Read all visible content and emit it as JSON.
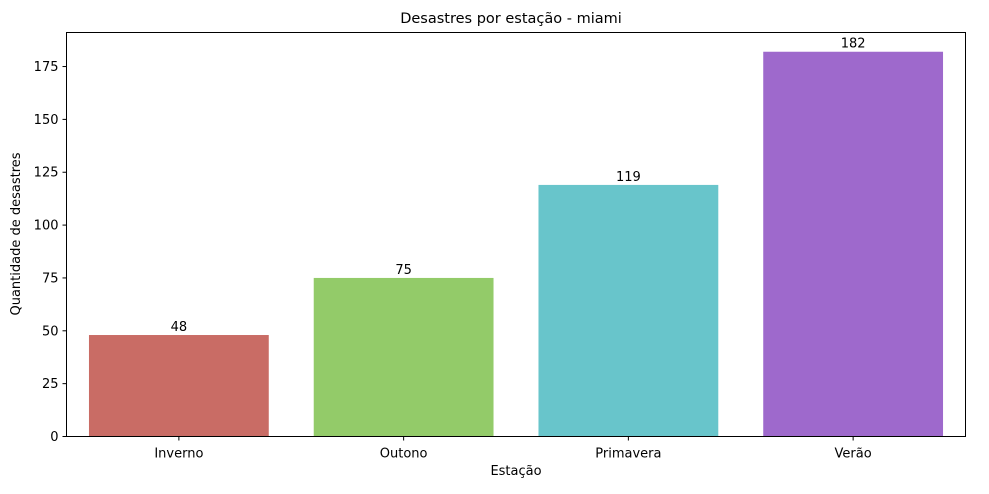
{
  "chart_data": {
    "type": "bar",
    "title": "Desastres por estação - miami",
    "xlabel": "Estação",
    "ylabel": "Quantidade de desastres",
    "categories": [
      "Inverno",
      "Outono",
      "Primavera",
      "Verão"
    ],
    "values": [
      48,
      75,
      119,
      182
    ],
    "data_labels": [
      "48",
      "75",
      "119",
      "182"
    ],
    "colors": [
      "#c96c65",
      "#93cb69",
      "#68c5cb",
      "#9e69cc"
    ],
    "ylim": [
      0,
      191.1
    ],
    "yticks": [
      0,
      25,
      50,
      75,
      100,
      125,
      150,
      175
    ],
    "ytick_labels": [
      "0",
      "25",
      "50",
      "75",
      "100",
      "125",
      "150",
      "175"
    ],
    "grid": false,
    "legend": "none"
  }
}
